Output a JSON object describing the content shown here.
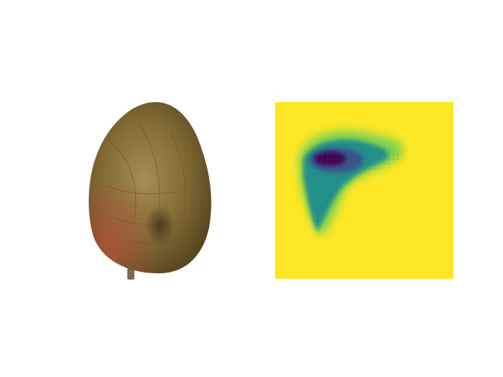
{
  "figure": {
    "left_panel": {
      "subject": "avocado-fruit-photo",
      "colors": {
        "skin_main": "#7f6a33",
        "skin_highlight": "#a48e55",
        "skin_shadow": "#4f3f1c",
        "blush": "#b0553a",
        "stem": "#7b6a5a"
      }
    },
    "right_panel": {
      "subject": "saliency-heatmap",
      "colormap": "viridis",
      "colors": {
        "background": "#fde725",
        "low": "#35b779",
        "mid": "#21918c",
        "high": "#3b528b",
        "peak": "#440154"
      }
    }
  }
}
